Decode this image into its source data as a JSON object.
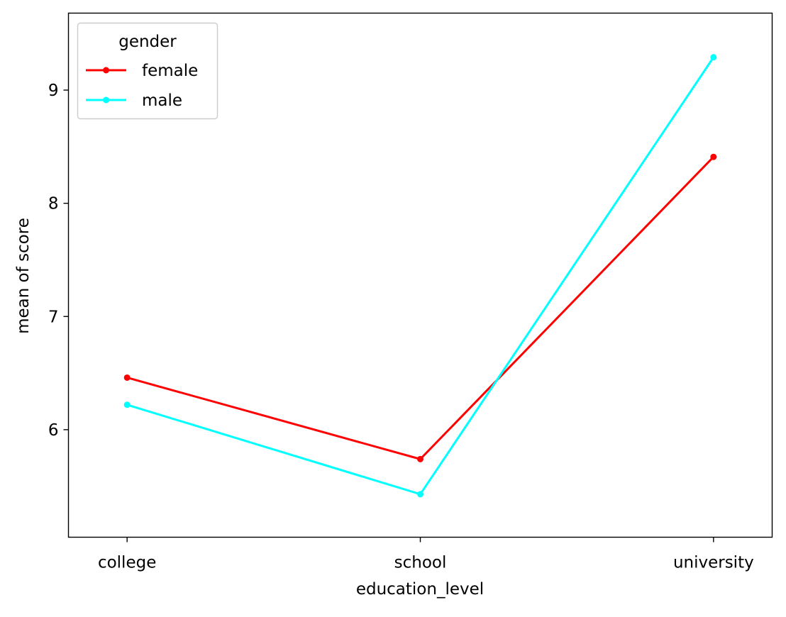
{
  "chart_data": {
    "type": "line",
    "categories": [
      "college",
      "school",
      "university"
    ],
    "series": [
      {
        "name": "female",
        "color": "#ff0000",
        "values": [
          6.46,
          5.74,
          8.41
        ]
      },
      {
        "name": "male",
        "color": "#00ffff",
        "values": [
          6.22,
          5.43,
          9.29
        ]
      }
    ],
    "xlabel": "education_level",
    "ylabel": "mean of score",
    "ylim": [
      5.05,
      9.68
    ],
    "yticks": [
      6,
      7,
      8,
      9
    ],
    "grid": false,
    "legend": {
      "title": "gender",
      "placement": "top-left"
    }
  }
}
